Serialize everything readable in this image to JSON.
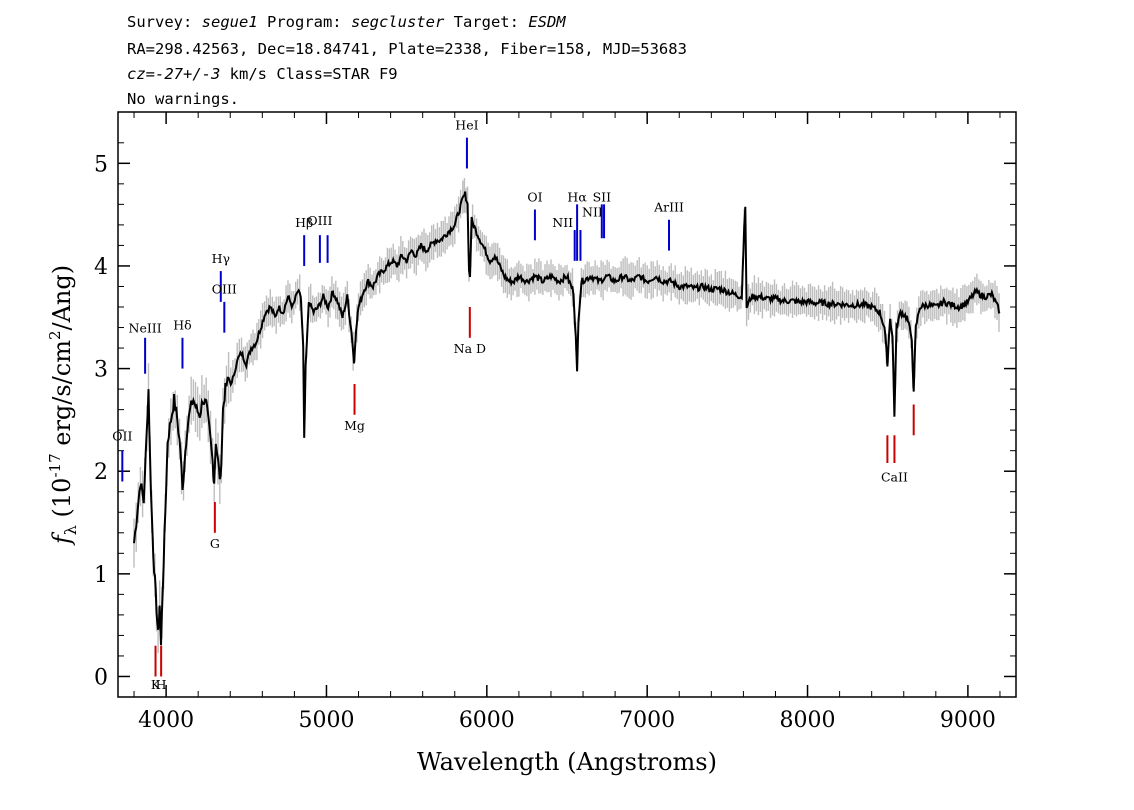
{
  "header": {
    "line1": [
      {
        "text": "Survey: ",
        "style": "normal"
      },
      {
        "text": "segue1",
        "style": "italic"
      },
      {
        "text": " Program: ",
        "style": "normal"
      },
      {
        "text": "segcluster",
        "style": "italic"
      },
      {
        "text": " Target: ",
        "style": "normal"
      },
      {
        "text": "ESDM",
        "style": "italic"
      }
    ],
    "line2": "RA=298.42563, Dec=18.84741, Plate=2338, Fiber=158, MJD=53683",
    "line3": [
      {
        "text": "cz=-27+/-3",
        "style": "italic"
      },
      {
        "text": " km/s Class=STAR F9",
        "style": "normal"
      }
    ],
    "line4": "No warnings."
  },
  "chart_data": {
    "type": "line",
    "xlabel": "Wavelength (Angstroms)",
    "ylabel_parts": {
      "prefix": "f",
      "subscript": "λ",
      "mid": " (10",
      "exp": "-17",
      "mid2": " erg/s/cm",
      "exp2": "2",
      "suffix": "/Ang)"
    },
    "xlim": [
      3700,
      9300
    ],
    "ylim": [
      -0.2,
      5.5
    ],
    "xticks": [
      4000,
      5000,
      6000,
      7000,
      8000,
      9000
    ],
    "yticks": [
      0,
      1,
      2,
      3,
      4,
      5
    ],
    "series": [
      {
        "color": "#000000",
        "error_color": "#bdbdbd",
        "points": [
          [
            3800,
            1.3
          ],
          [
            3820,
            1.6
          ],
          [
            3840,
            1.9
          ],
          [
            3860,
            1.7
          ],
          [
            3880,
            2.4
          ],
          [
            3890,
            2.8
          ],
          [
            3900,
            2.1
          ],
          [
            3910,
            1.6
          ],
          [
            3920,
            1.2
          ],
          [
            3935,
            0.8
          ],
          [
            3950,
            0.4
          ],
          [
            3960,
            0.7
          ],
          [
            3968,
            0.3
          ],
          [
            3980,
            0.9
          ],
          [
            3995,
            1.6
          ],
          [
            4010,
            2.3
          ],
          [
            4030,
            2.5
          ],
          [
            4050,
            2.7
          ],
          [
            4070,
            2.5
          ],
          [
            4090,
            2.2
          ],
          [
            4102,
            1.8
          ],
          [
            4115,
            2.1
          ],
          [
            4130,
            2.4
          ],
          [
            4150,
            2.6
          ],
          [
            4170,
            2.7
          ],
          [
            4190,
            2.6
          ],
          [
            4210,
            2.55
          ],
          [
            4230,
            2.7
          ],
          [
            4250,
            2.65
          ],
          [
            4270,
            2.4
          ],
          [
            4290,
            2.1
          ],
          [
            4300,
            1.9
          ],
          [
            4310,
            2.3
          ],
          [
            4330,
            2.0
          ],
          [
            4340,
            1.9
          ],
          [
            4355,
            2.6
          ],
          [
            4370,
            2.8
          ],
          [
            4390,
            2.9
          ],
          [
            4410,
            2.85
          ],
          [
            4430,
            3.0
          ],
          [
            4450,
            3.1
          ],
          [
            4470,
            3.15
          ],
          [
            4500,
            3.05
          ],
          [
            4530,
            3.2
          ],
          [
            4560,
            3.25
          ],
          [
            4590,
            3.4
          ],
          [
            4620,
            3.55
          ],
          [
            4650,
            3.6
          ],
          [
            4680,
            3.5
          ],
          [
            4700,
            3.6
          ],
          [
            4730,
            3.55
          ],
          [
            4760,
            3.7
          ],
          [
            4790,
            3.6
          ],
          [
            4820,
            3.75
          ],
          [
            4840,
            3.7
          ],
          [
            4855,
            3.2
          ],
          [
            4861,
            2.3
          ],
          [
            4870,
            3.0
          ],
          [
            4890,
            3.65
          ],
          [
            4920,
            3.55
          ],
          [
            4950,
            3.6
          ],
          [
            4980,
            3.7
          ],
          [
            5010,
            3.6
          ],
          [
            5040,
            3.75
          ],
          [
            5070,
            3.65
          ],
          [
            5100,
            3.5
          ],
          [
            5130,
            3.7
          ],
          [
            5160,
            3.3
          ],
          [
            5172,
            3.05
          ],
          [
            5185,
            3.4
          ],
          [
            5200,
            3.6
          ],
          [
            5230,
            3.75
          ],
          [
            5260,
            3.85
          ],
          [
            5290,
            3.8
          ],
          [
            5320,
            3.9
          ],
          [
            5350,
            3.95
          ],
          [
            5380,
            4.0
          ],
          [
            5410,
            4.05
          ],
          [
            5440,
            4.0
          ],
          [
            5470,
            4.1
          ],
          [
            5500,
            4.05
          ],
          [
            5530,
            4.15
          ],
          [
            5560,
            4.1
          ],
          [
            5590,
            4.2
          ],
          [
            5620,
            4.15
          ],
          [
            5650,
            4.2
          ],
          [
            5680,
            4.25
          ],
          [
            5710,
            4.25
          ],
          [
            5740,
            4.3
          ],
          [
            5770,
            4.35
          ],
          [
            5800,
            4.4
          ],
          [
            5830,
            4.55
          ],
          [
            5850,
            4.65
          ],
          [
            5865,
            4.7
          ],
          [
            5880,
            4.6
          ],
          [
            5889,
            3.95
          ],
          [
            5895,
            3.9
          ],
          [
            5905,
            4.45
          ],
          [
            5930,
            4.35
          ],
          [
            5960,
            4.25
          ],
          [
            5990,
            4.15
          ],
          [
            6020,
            4.05
          ],
          [
            6050,
            4.1
          ],
          [
            6080,
            4.0
          ],
          [
            6110,
            3.9
          ],
          [
            6140,
            3.85
          ],
          [
            6170,
            3.85
          ],
          [
            6200,
            3.9
          ],
          [
            6250,
            3.85
          ],
          [
            6300,
            3.9
          ],
          [
            6350,
            3.85
          ],
          [
            6400,
            3.9
          ],
          [
            6450,
            3.85
          ],
          [
            6500,
            3.9
          ],
          [
            6540,
            3.75
          ],
          [
            6555,
            3.3
          ],
          [
            6563,
            2.95
          ],
          [
            6572,
            3.5
          ],
          [
            6590,
            3.85
          ],
          [
            6650,
            3.9
          ],
          [
            6700,
            3.85
          ],
          [
            6750,
            3.9
          ],
          [
            6800,
            3.85
          ],
          [
            6850,
            3.9
          ],
          [
            6900,
            3.85
          ],
          [
            6950,
            3.9
          ],
          [
            7000,
            3.85
          ],
          [
            7050,
            3.9
          ],
          [
            7100,
            3.85
          ],
          [
            7150,
            3.85
          ],
          [
            7200,
            3.8
          ],
          [
            7250,
            3.8
          ],
          [
            7300,
            3.78
          ],
          [
            7350,
            3.8
          ],
          [
            7400,
            3.77
          ],
          [
            7450,
            3.78
          ],
          [
            7500,
            3.75
          ],
          [
            7550,
            3.72
          ],
          [
            7590,
            3.7
          ],
          [
            7605,
            4.4
          ],
          [
            7612,
            4.55
          ],
          [
            7620,
            3.6
          ],
          [
            7650,
            3.7
          ],
          [
            7700,
            3.7
          ],
          [
            7750,
            3.68
          ],
          [
            7800,
            3.68
          ],
          [
            7850,
            3.66
          ],
          [
            7900,
            3.66
          ],
          [
            7950,
            3.65
          ],
          [
            8000,
            3.65
          ],
          [
            8050,
            3.64
          ],
          [
            8100,
            3.64
          ],
          [
            8150,
            3.63
          ],
          [
            8200,
            3.63
          ],
          [
            8250,
            3.62
          ],
          [
            8300,
            3.62
          ],
          [
            8350,
            3.62
          ],
          [
            8400,
            3.6
          ],
          [
            8450,
            3.55
          ],
          [
            8480,
            3.4
          ],
          [
            8498,
            3.05
          ],
          [
            8515,
            3.5
          ],
          [
            8530,
            3.3
          ],
          [
            8542,
            2.55
          ],
          [
            8555,
            3.4
          ],
          [
            8580,
            3.55
          ],
          [
            8620,
            3.5
          ],
          [
            8650,
            3.3
          ],
          [
            8662,
            2.75
          ],
          [
            8675,
            3.4
          ],
          [
            8700,
            3.6
          ],
          [
            8750,
            3.62
          ],
          [
            8800,
            3.6
          ],
          [
            8850,
            3.65
          ],
          [
            8900,
            3.62
          ],
          [
            8950,
            3.6
          ],
          [
            9000,
            3.65
          ],
          [
            9050,
            3.75
          ],
          [
            9100,
            3.7
          ],
          [
            9150,
            3.72
          ],
          [
            9200,
            3.55
          ]
        ]
      }
    ],
    "emission_lines": [
      {
        "label": "OII",
        "wavelength": 3727,
        "y_top": 2.2,
        "y_bottom": 1.9,
        "label_y": 2.3,
        "color": "#0000cc"
      },
      {
        "label": "NeIII",
        "wavelength": 3869,
        "y_top": 3.3,
        "y_bottom": 2.95,
        "label_y": 3.35,
        "color": "#0000cc"
      },
      {
        "label": "Hδ",
        "wavelength": 4102,
        "y_top": 3.3,
        "y_bottom": 3.0,
        "label_y": 3.38,
        "color": "#0000cc"
      },
      {
        "label": "Hγ",
        "wavelength": 4341,
        "y_top": 3.95,
        "y_bottom": 3.65,
        "label_y": 4.03,
        "color": "#0000cc"
      },
      {
        "label": "OIII",
        "wavelength": 4363,
        "y_top": 3.65,
        "y_bottom": 3.35,
        "label_y": 3.73,
        "color": "#0000cc"
      },
      {
        "label": "Hβ",
        "wavelength": 4861,
        "y_top": 4.3,
        "y_bottom": 4.0,
        "label_y": 4.38,
        "color": "#0000cc"
      },
      {
        "label": "OIII",
        "wavelength": 4959,
        "y_top": 4.3,
        "y_bottom": 4.03,
        "label_y": 4.4,
        "color": "#0000cc"
      },
      {
        "label": "",
        "wavelength": 5007,
        "y_top": 4.3,
        "y_bottom": 4.03,
        "label_y": 4.4,
        "color": "#0000cc"
      },
      {
        "label": "HeI",
        "wavelength": 5876,
        "y_top": 5.25,
        "y_bottom": 4.95,
        "label_y": 5.33,
        "color": "#0000cc"
      },
      {
        "label": "OI",
        "wavelength": 6300,
        "y_top": 4.55,
        "y_bottom": 4.25,
        "label_y": 4.63,
        "color": "#0000cc"
      },
      {
        "label": "NII",
        "wavelength": 6548,
        "y_top": 4.35,
        "y_bottom": 4.05,
        "label_y": 4.38,
        "label_dx": -0.12,
        "color": "#0000cc"
      },
      {
        "label": "Hα",
        "wavelength": 6563,
        "y_top": 4.6,
        "y_bottom": 4.05,
        "label_y": 4.63,
        "color": "#0000cc"
      },
      {
        "label": "NII",
        "wavelength": 6584,
        "y_top": 4.35,
        "y_bottom": 4.05,
        "label_y": 4.48,
        "label_dx": 0.12,
        "color": "#0000cc"
      },
      {
        "label": "SII",
        "wavelength": 6717,
        "y_top": 4.6,
        "y_bottom": 4.27,
        "label_y": 4.63,
        "color": "#0000cc"
      },
      {
        "label": "",
        "wavelength": 6731,
        "y_top": 4.6,
        "y_bottom": 4.27,
        "label_y": 4.63,
        "color": "#0000cc"
      },
      {
        "label": "ArIII",
        "wavelength": 7136,
        "y_top": 4.45,
        "y_bottom": 4.15,
        "label_y": 4.53,
        "color": "#0000cc"
      }
    ],
    "absorption_lines": [
      {
        "label": "K",
        "wavelength": 3934,
        "y_top": 0.3,
        "y_bottom": 0.0,
        "label_y": -0.12,
        "color": "#cc0000"
      },
      {
        "label": "H",
        "wavelength": 3969,
        "y_top": 0.3,
        "y_bottom": 0.0,
        "label_y": -0.12,
        "color": "#cc0000"
      },
      {
        "label": "G",
        "wavelength": 4304,
        "y_top": 1.7,
        "y_bottom": 1.4,
        "label_y": 1.25,
        "color": "#cc0000"
      },
      {
        "label": "Mg",
        "wavelength": 5175,
        "y_top": 2.85,
        "y_bottom": 2.55,
        "label_y": 2.4,
        "color": "#cc0000"
      },
      {
        "label": "Na D",
        "wavelength": 5894,
        "y_top": 3.6,
        "y_bottom": 3.3,
        "label_y": 3.15,
        "color": "#cc0000"
      },
      {
        "label": "",
        "wavelength": 8498,
        "y_top": 2.35,
        "y_bottom": 2.08,
        "label_y": 1.9,
        "color": "#cc0000"
      },
      {
        "label": "CaII",
        "wavelength": 8542,
        "y_top": 2.35,
        "y_bottom": 2.08,
        "label_y": 1.9,
        "color": "#cc0000"
      },
      {
        "label": "",
        "wavelength": 8662,
        "y_top": 2.65,
        "y_bottom": 2.35,
        "label_y": 1.9,
        "color": "#cc0000"
      }
    ]
  }
}
